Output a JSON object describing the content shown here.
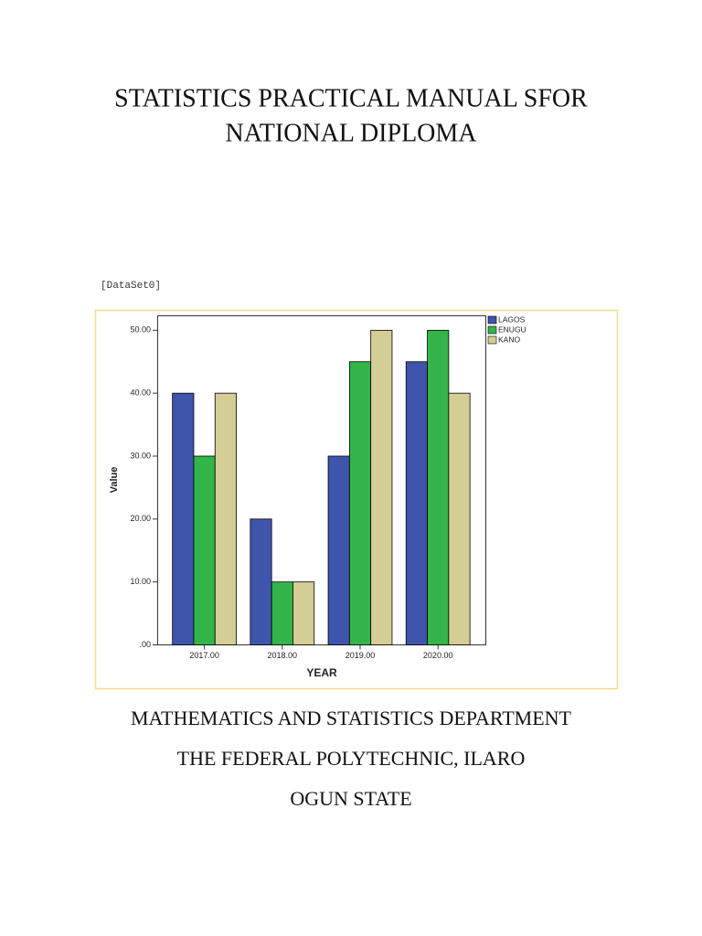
{
  "title": [
    "STATISTICS PRACTICAL MANUAL SFOR",
    "NATIONAL DIPLOMA"
  ],
  "dataset_label": "[DataSet0]",
  "chart_data": {
    "type": "bar",
    "categories": [
      "2017.00",
      "2018.00",
      "2019.00",
      "2020.00"
    ],
    "series": [
      {
        "name": "LAGOS",
        "color": "#3f55ab",
        "values": [
          40,
          20,
          30,
          45
        ]
      },
      {
        "name": "ENUGU",
        "color": "#33b54a",
        "values": [
          30,
          10,
          45,
          50
        ]
      },
      {
        "name": "KANO",
        "color": "#d4cd95",
        "values": [
          40,
          10,
          50,
          40
        ]
      }
    ],
    "x_label": "YEAR",
    "y_label": "Value",
    "ylim": [
      0,
      52.3
    ],
    "yticks": [
      {
        "value": 0,
        "label": ".00"
      },
      {
        "value": 10,
        "label": "10.00"
      },
      {
        "value": 20,
        "label": "20.00"
      },
      {
        "value": 30,
        "label": "30.00"
      },
      {
        "value": 40,
        "label": "40.00"
      },
      {
        "value": 50,
        "label": "50.00"
      }
    ],
    "legend": "right"
  },
  "footer": [
    "MATHEMATICS AND STATISTICS DEPARTMENT",
    "THE FEDERAL POLYTECHNIC, ILARO",
    "OGUN STATE"
  ]
}
